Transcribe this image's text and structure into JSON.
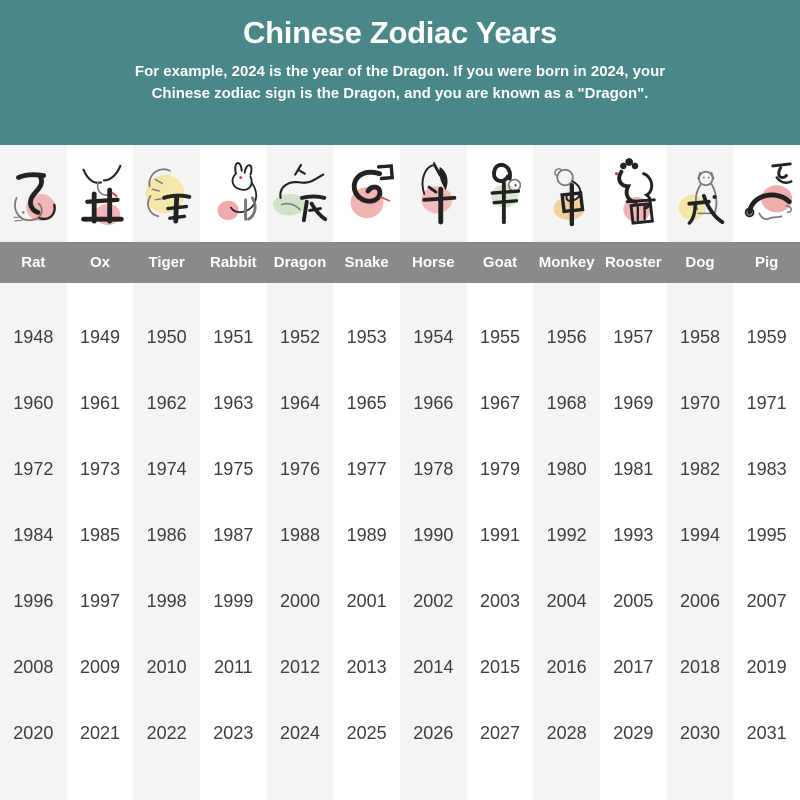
{
  "header": {
    "title": "Chinese Zodiac Years",
    "subtitle_line1": "For example, 2024 is the year of the Dragon. If you were born in 2024, your",
    "subtitle_line2": "Chinese zodiac sign is the Dragon, and you are known as a \"Dragon\"."
  },
  "colors": {
    "banner_bg": "#498789",
    "banner_text": "#ffffff",
    "band_bg": "#8a8a8a",
    "band_text": "#ffffff",
    "stripe_odd": "#f4f4f4",
    "stripe_even": "#ffffff",
    "year_text": "#3e3e3e",
    "ink": "#222222",
    "sketch": "#777777",
    "accent_red": "#cc4444"
  },
  "zodiac": [
    {
      "name": "Rat",
      "branch_character": "子",
      "icon": "rat-icon",
      "blob_color": "#f2b6b6",
      "years": [
        1948,
        1960,
        1972,
        1984,
        1996,
        2008,
        2020
      ]
    },
    {
      "name": "Ox",
      "branch_character": "丑",
      "icon": "ox-icon",
      "blob_color": "#f2b6ba",
      "years": [
        1949,
        1961,
        1973,
        1985,
        1997,
        2009,
        2021
      ]
    },
    {
      "name": "Tiger",
      "branch_character": "寅",
      "icon": "tiger-icon",
      "blob_color": "#f4e7a9",
      "years": [
        1950,
        1962,
        1974,
        1986,
        1998,
        2010,
        2022
      ]
    },
    {
      "name": "Rabbit",
      "branch_character": "卯",
      "icon": "rabbit-icon",
      "blob_color": "#f0a9ad",
      "years": [
        1951,
        1963,
        1975,
        1987,
        1999,
        2011,
        2023
      ]
    },
    {
      "name": "Dragon",
      "branch_character": "辰",
      "icon": "dragon-icon",
      "blob_color": "#cfe3c8",
      "years": [
        1952,
        1964,
        1976,
        1988,
        2000,
        2012,
        2024
      ]
    },
    {
      "name": "Snake",
      "branch_character": "巳",
      "icon": "snake-icon",
      "blob_color": "#f2b4b0",
      "years": [
        1953,
        1965,
        1977,
        1989,
        2001,
        2013,
        2025
      ]
    },
    {
      "name": "Horse",
      "branch_character": "午",
      "icon": "horse-icon",
      "blob_color": "#f3bcba",
      "years": [
        1954,
        1966,
        1978,
        1990,
        2002,
        2014,
        2026
      ]
    },
    {
      "name": "Goat",
      "branch_character": "未",
      "icon": "goat-icon",
      "blob_color": "#d7e7d1",
      "years": [
        1955,
        1967,
        1979,
        1991,
        2003,
        2015,
        2027
      ]
    },
    {
      "name": "Monkey",
      "branch_character": "申",
      "icon": "monkey-icon",
      "blob_color": "#f2cf9e",
      "years": [
        1956,
        1968,
        1980,
        1992,
        2004,
        2016,
        2028
      ]
    },
    {
      "name": "Rooster",
      "branch_character": "酉",
      "icon": "rooster-icon",
      "blob_color": "#efb3b9",
      "years": [
        1957,
        1969,
        1981,
        1993,
        2005,
        2017,
        2029
      ]
    },
    {
      "name": "Dog",
      "branch_character": "戌",
      "icon": "dog-icon",
      "blob_color": "#f5e6a8",
      "years": [
        1958,
        1970,
        1982,
        1994,
        2006,
        2018,
        2030
      ]
    },
    {
      "name": "Pig",
      "branch_character": "亥",
      "icon": "pig-icon",
      "blob_color": "#efadad",
      "years": [
        1959,
        1971,
        1983,
        1995,
        2007,
        2019,
        2031
      ]
    }
  ],
  "chart_data": {
    "type": "table",
    "title": "Chinese Zodiac Years",
    "columns": [
      "Rat",
      "Ox",
      "Tiger",
      "Rabbit",
      "Dragon",
      "Snake",
      "Horse",
      "Goat",
      "Monkey",
      "Rooster",
      "Dog",
      "Pig"
    ],
    "rows": [
      [
        1948,
        1949,
        1950,
        1951,
        1952,
        1953,
        1954,
        1955,
        1956,
        1957,
        1958,
        1959
      ],
      [
        1960,
        1961,
        1962,
        1963,
        1964,
        1965,
        1966,
        1967,
        1968,
        1969,
        1970,
        1971
      ],
      [
        1972,
        1973,
        1974,
        1975,
        1976,
        1977,
        1978,
        1979,
        1980,
        1981,
        1982,
        1983
      ],
      [
        1984,
        1985,
        1986,
        1987,
        1988,
        1989,
        1990,
        1991,
        1992,
        1993,
        1994,
        1995
      ],
      [
        1996,
        1997,
        1998,
        1999,
        2000,
        2001,
        2002,
        2003,
        2004,
        2005,
        2006,
        2007
      ],
      [
        2008,
        2009,
        2010,
        2011,
        2012,
        2013,
        2014,
        2015,
        2016,
        2017,
        2018,
        2019
      ],
      [
        2020,
        2021,
        2022,
        2023,
        2024,
        2025,
        2026,
        2027,
        2028,
        2029,
        2030,
        2031
      ]
    ]
  }
}
